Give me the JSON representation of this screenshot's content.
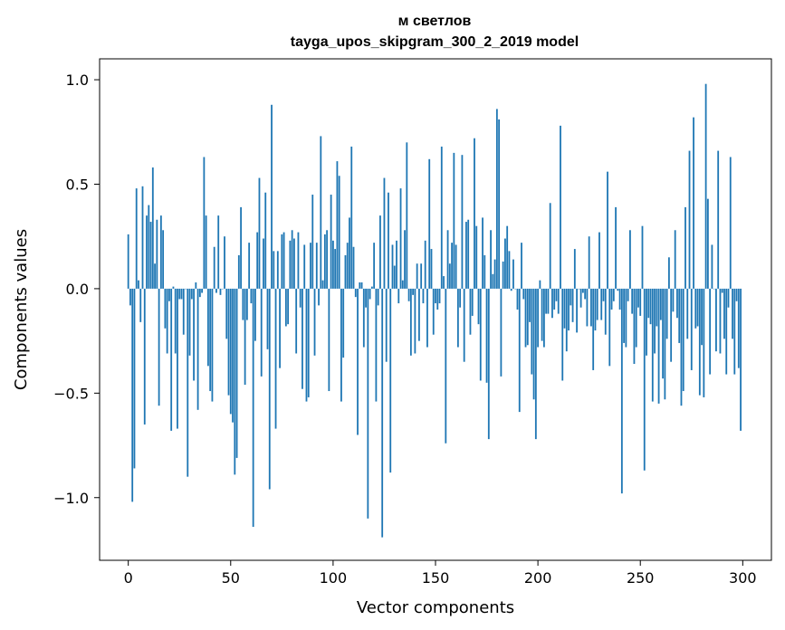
{
  "chart_data": {
    "type": "bar",
    "title": "м светлов",
    "subtitle": "tayga_upos_skipgram_300_2_2019 model",
    "xlabel": "Vector components",
    "ylabel": "Components values",
    "xlim": [
      -14,
      314
    ],
    "ylim": [
      -1.3,
      1.1
    ],
    "xticks": [
      0,
      50,
      100,
      150,
      200,
      250,
      300
    ],
    "xtick_labels": [
      "0",
      "50",
      "100",
      "150",
      "200",
      "250",
      "300"
    ],
    "yticks": [
      -1.0,
      -0.5,
      0.0,
      0.5,
      1.0
    ],
    "ytick_labels": [
      "−1.0",
      "−0.5",
      "0.0",
      "0.5",
      "1.0"
    ],
    "bar_color": "#1f77b4",
    "values": [
      0.26,
      -0.08,
      -1.02,
      -0.86,
      0.48,
      0.04,
      -0.16,
      0.49,
      -0.65,
      0.35,
      0.4,
      0.32,
      0.58,
      0.12,
      0.33,
      -0.56,
      0.35,
      0.28,
      -0.19,
      -0.31,
      -0.06,
      -0.68,
      0.01,
      -0.31,
      -0.67,
      -0.05,
      -0.05,
      -0.22,
      0.0,
      -0.9,
      -0.32,
      -0.05,
      -0.44,
      0.03,
      -0.58,
      -0.04,
      -0.02,
      0.63,
      0.35,
      -0.37,
      -0.49,
      -0.54,
      0.2,
      -0.02,
      0.35,
      -0.03,
      0.0,
      0.25,
      -0.24,
      -0.51,
      -0.6,
      -0.64,
      -0.89,
      -0.81,
      0.16,
      0.39,
      -0.15,
      -0.46,
      -0.15,
      0.22,
      -0.07,
      -1.14,
      -0.25,
      0.27,
      0.53,
      -0.42,
      0.24,
      0.46,
      -0.29,
      -0.96,
      0.88,
      0.18,
      -0.67,
      0.18,
      -0.38,
      0.26,
      0.27,
      -0.18,
      -0.17,
      0.23,
      0.28,
      0.24,
      -0.31,
      0.27,
      -0.09,
      -0.48,
      0.21,
      -0.54,
      -0.52,
      0.22,
      0.45,
      -0.32,
      0.22,
      -0.08,
      0.73,
      0.04,
      0.26,
      0.28,
      -0.49,
      0.45,
      0.23,
      0.19,
      0.61,
      0.54,
      -0.54,
      -0.33,
      0.16,
      0.22,
      0.34,
      0.68,
      0.2,
      -0.04,
      -0.7,
      0.03,
      0.03,
      -0.28,
      -0.09,
      -1.1,
      -0.05,
      0.01,
      0.22,
      -0.54,
      -0.08,
      0.35,
      -1.19,
      0.53,
      -0.35,
      0.46,
      -0.88,
      0.21,
      0.11,
      0.23,
      -0.07,
      0.48,
      0.04,
      0.28,
      0.7,
      -0.06,
      -0.32,
      -0.03,
      -0.31,
      0.12,
      -0.25,
      0.12,
      -0.07,
      0.23,
      -0.28,
      0.62,
      0.19,
      -0.22,
      -0.07,
      -0.1,
      -0.07,
      0.68,
      0.06,
      -0.74,
      0.28,
      0.12,
      0.22,
      0.65,
      0.21,
      -0.28,
      -0.09,
      0.64,
      -0.35,
      0.32,
      0.33,
      -0.22,
      -0.13,
      0.72,
      0.3,
      -0.17,
      -0.44,
      0.34,
      0.16,
      -0.45,
      -0.72,
      0.28,
      0.07,
      0.14,
      0.86,
      0.81,
      -0.42,
      0.13,
      0.24,
      0.3,
      0.18,
      -0.01,
      0.14,
      0.0,
      -0.1,
      -0.59,
      0.22,
      -0.05,
      -0.28,
      -0.27,
      -0.16,
      -0.41,
      -0.53,
      -0.72,
      -0.28,
      0.04,
      -0.25,
      -0.28,
      -0.12,
      -0.12,
      0.41,
      -0.14,
      -0.1,
      -0.06,
      -0.12,
      0.78,
      -0.44,
      -0.19,
      -0.3,
      -0.2,
      -0.08,
      -0.16,
      0.19,
      -0.21,
      0.0,
      -0.09,
      -0.02,
      -0.05,
      -0.18,
      0.25,
      -0.18,
      -0.39,
      -0.2,
      -0.15,
      0.27,
      -0.15,
      -0.06,
      -0.22,
      0.56,
      -0.37,
      -0.1,
      -0.06,
      0.39,
      -0.01,
      -0.1,
      -0.98,
      -0.26,
      -0.28,
      -0.06,
      0.28,
      -0.12,
      -0.36,
      -0.28,
      -0.09,
      -0.13,
      0.3,
      -0.87,
      -0.32,
      -0.14,
      -0.17,
      -0.54,
      -0.31,
      -0.18,
      -0.55,
      -0.15,
      -0.43,
      -0.53,
      -0.24,
      0.15,
      -0.35,
      -0.11,
      0.28,
      -0.14,
      -0.26,
      -0.56,
      -0.49,
      0.39,
      -0.24,
      0.66,
      -0.39,
      0.82,
      -0.19,
      -0.18,
      -0.51,
      -0.27,
      -0.52,
      0.98,
      0.43,
      -0.41,
      0.21,
      0.0,
      -0.3,
      0.66,
      -0.31,
      -0.02,
      -0.24,
      -0.41,
      -0.09,
      0.63,
      -0.24,
      -0.41,
      -0.06,
      -0.38,
      -0.68
    ]
  }
}
